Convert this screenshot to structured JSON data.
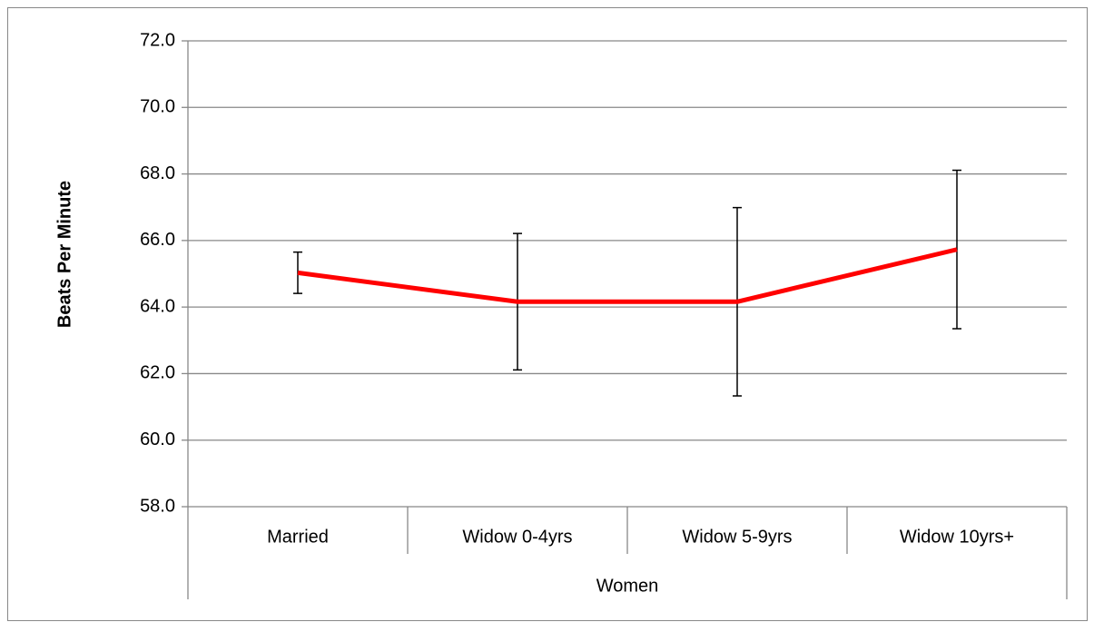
{
  "chart_data": {
    "type": "line",
    "ylabel": "Beats Per Minute",
    "xlabel": "Women",
    "categories": [
      "Married",
      "Widow 0-4yrs",
      "Widow 5-9yrs",
      "Widow 10yrs+"
    ],
    "series": [
      {
        "color": "#ff0000",
        "values": [
          65.03,
          64.16,
          64.16,
          65.73
        ],
        "errors": [
          0.62,
          2.05,
          2.83,
          2.38
        ]
      }
    ],
    "ylim": [
      58,
      72
    ],
    "yticks": [
      {
        "value": 58,
        "label": "58.0"
      },
      {
        "value": 60,
        "label": "60.0"
      },
      {
        "value": 62,
        "label": "62.0"
      },
      {
        "value": 64,
        "label": "64.0"
      },
      {
        "value": 66,
        "label": "66.0"
      },
      {
        "value": 68,
        "label": "68.0"
      },
      {
        "value": 70,
        "label": "70.0"
      },
      {
        "value": 72,
        "label": "72.0"
      }
    ],
    "grid": true
  }
}
